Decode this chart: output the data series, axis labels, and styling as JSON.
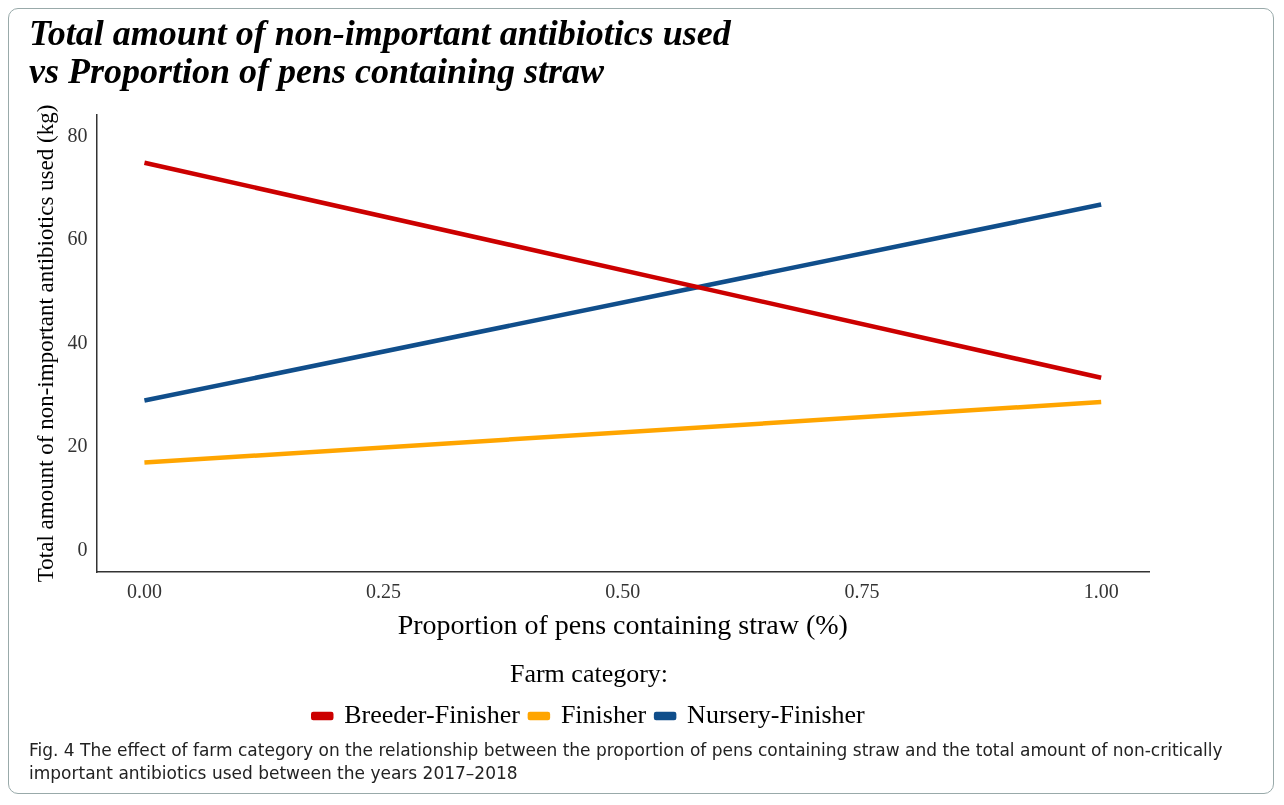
{
  "chart_data": {
    "type": "line",
    "title": [
      "Total amount of non-important antibiotics used",
      "vs Proportion of pens containing straw"
    ],
    "xlabel": "Proportion of pens containing straw (%)",
    "ylabel": "Total amount of non-important antibiotics used (kg)",
    "legend_title": "Farm category:",
    "legend": "bottom",
    "grid": false,
    "marker": "none",
    "line_style": "solid",
    "x": [
      0,
      1
    ],
    "xlim": [
      -0.05,
      1.05
    ],
    "xticks": [
      {
        "value": 0,
        "label": "0.00"
      },
      {
        "value": 0.25,
        "label": "0.25"
      },
      {
        "value": 0.5,
        "label": "0.50"
      },
      {
        "value": 0.75,
        "label": "0.75"
      },
      {
        "value": 1,
        "label": "1.00"
      }
    ],
    "ylim": [
      -4.2,
      84.3
    ],
    "yticks": [
      0,
      20,
      40,
      60,
      80
    ],
    "series": [
      {
        "name": "Breeder-Finisher",
        "color": "#cc0000",
        "values": [
          75,
          33.4
        ]
      },
      {
        "name": "Finisher",
        "color": "#ffa500",
        "values": [
          17,
          28.7
        ]
      },
      {
        "name": "Nursery-Finisher",
        "color": "#104e8b",
        "values": [
          29,
          66.9
        ]
      }
    ],
    "annotations": [
      "Fig. 4  The effect of farm category on the relationship between the proportion of pens containing straw and the total amount of non-critically important antibiotics used between the years 2017–2018"
    ]
  }
}
